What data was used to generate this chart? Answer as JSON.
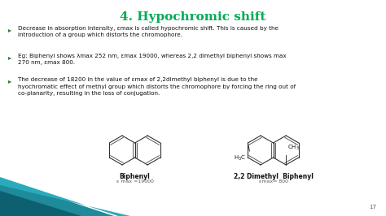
{
  "title": "4. Hypochromic shift",
  "title_color": "#00AA55",
  "title_fontsize": 11,
  "bg_color": "#FFFFFF",
  "bullet_color": "#2E7D32",
  "bullet1": "Decrease in absorption intensity, εmax is called hypochromic shift. This is caused by the introduction of a group which distorts the chromophore.",
  "bullet2": "Eg: Biphenyl shows λmax 252 nm, εmax 19000, whereas 2,2 dimethyl biphenyl shows max 270 nm, εmax 800.",
  "bullet3": "The decrease of 18200 in the value of εmax of 2,2dimethyl biphenyl is due to the hyochromatic effect of methyl group which distorts the chromophore by forcing the ring out of co-planarity, resulting in the loss of conjugation.",
  "label1": "Biphenyl",
  "label1_sub": "ε max =19000",
  "label2": "2,2 Dimethyl  Biphenyl",
  "label2_sub": "εmax= 800",
  "page_num": "17",
  "mol_color": "#333333",
  "text_color": "#111111",
  "bottom_teal": "#1E8A9A",
  "bottom_teal_light": "#2AABBB"
}
